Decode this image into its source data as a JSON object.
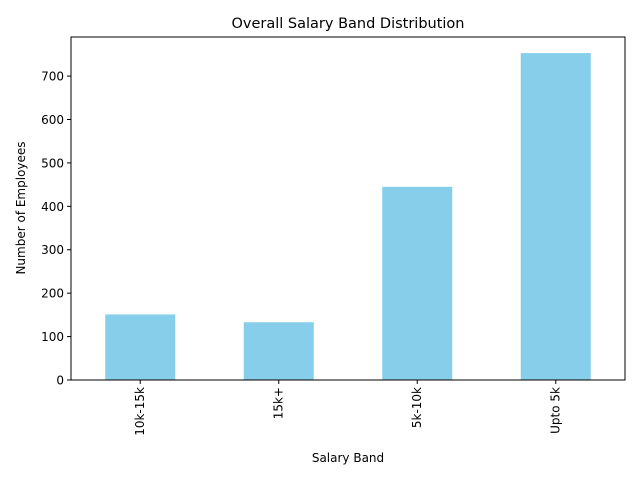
{
  "chart_data": {
    "type": "bar",
    "title": "Overall Salary Band Distribution",
    "xlabel": "Salary Band",
    "ylabel": "Number of Employees",
    "categories": [
      "10k-15k",
      "15k+",
      "5k-10k",
      "Upto 5k"
    ],
    "values": [
      151,
      133,
      445,
      753
    ],
    "ylim": [
      0,
      790
    ],
    "yticks": [
      0,
      100,
      200,
      300,
      400,
      500,
      600,
      700
    ],
    "grid": false,
    "bar_color": "#87ceeb",
    "x_tick_rotation": "vertical"
  }
}
